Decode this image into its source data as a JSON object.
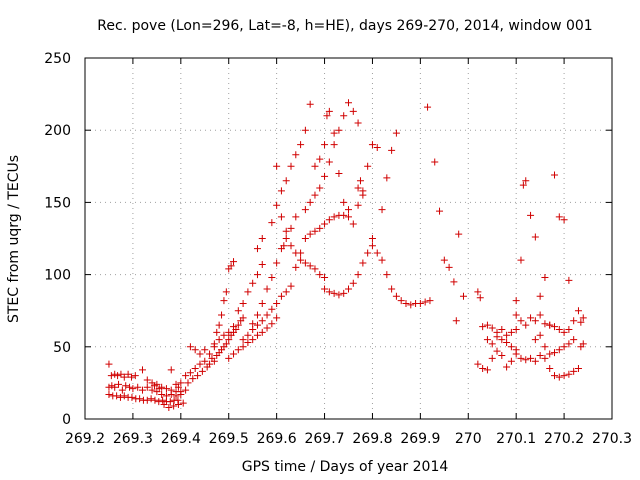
{
  "chart_data": {
    "type": "scatter",
    "title": "Rec. pove (Lon=296, Lat=-8, h=HE), days 269-270, 2014, window 001",
    "xlabel": "GPS time / Days of year 2014",
    "ylabel": "STEC from uqrg / TECUs",
    "xlim": [
      269.2,
      270.3
    ],
    "ylim": [
      0,
      250
    ],
    "x_ticks": [
      "269.2",
      "269.3",
      "269.4",
      "269.5",
      "269.6",
      "269.7",
      "269.8",
      "269.9",
      "270",
      "270.1",
      "270.2",
      "270.3"
    ],
    "y_ticks": [
      "0",
      "50",
      "100",
      "150",
      "200",
      "250"
    ],
    "grid": true,
    "marker": "+",
    "color": "#d00000",
    "points": [
      [
        269.25,
        38
      ],
      [
        269.255,
        30
      ],
      [
        269.262,
        31
      ],
      [
        269.268,
        30
      ],
      [
        269.275,
        31
      ],
      [
        269.282,
        29
      ],
      [
        269.29,
        31
      ],
      [
        269.297,
        29
      ],
      [
        269.305,
        30
      ],
      [
        269.32,
        34
      ],
      [
        269.25,
        22
      ],
      [
        269.256,
        23
      ],
      [
        269.262,
        22
      ],
      [
        269.27,
        24
      ],
      [
        269.278,
        20
      ],
      [
        269.285,
        23
      ],
      [
        269.293,
        22
      ],
      [
        269.3,
        21
      ],
      [
        269.31,
        22
      ],
      [
        269.32,
        20
      ],
      [
        269.33,
        22
      ],
      [
        269.34,
        20
      ],
      [
        269.35,
        19
      ],
      [
        269.25,
        17
      ],
      [
        269.258,
        16
      ],
      [
        269.266,
        16
      ],
      [
        269.274,
        15
      ],
      [
        269.282,
        16
      ],
      [
        269.29,
        15
      ],
      [
        269.298,
        15
      ],
      [
        269.306,
        14
      ],
      [
        269.314,
        14
      ],
      [
        269.322,
        13
      ],
      [
        269.33,
        13
      ],
      [
        269.338,
        14
      ],
      [
        269.346,
        13
      ],
      [
        269.354,
        12
      ],
      [
        269.362,
        13
      ],
      [
        269.37,
        12
      ],
      [
        269.378,
        12
      ],
      [
        269.386,
        13
      ],
      [
        269.394,
        13
      ],
      [
        269.33,
        27
      ],
      [
        269.34,
        25
      ],
      [
        269.35,
        24
      ],
      [
        269.36,
        22
      ],
      [
        269.37,
        21
      ],
      [
        269.38,
        20
      ],
      [
        269.39,
        19
      ],
      [
        269.4,
        19
      ],
      [
        269.345,
        23
      ],
      [
        269.355,
        21
      ],
      [
        269.36,
        17
      ],
      [
        269.37,
        16
      ],
      [
        269.38,
        17
      ],
      [
        269.39,
        16
      ],
      [
        269.4,
        17
      ],
      [
        269.365,
        10
      ],
      [
        269.375,
        8
      ],
      [
        269.385,
        9
      ],
      [
        269.395,
        10
      ],
      [
        269.405,
        11
      ],
      [
        269.38,
        34
      ],
      [
        269.39,
        24
      ],
      [
        269.395,
        22
      ],
      [
        269.4,
        25
      ],
      [
        269.41,
        20
      ],
      [
        269.41,
        30
      ],
      [
        269.415,
        25
      ],
      [
        269.42,
        32
      ],
      [
        269.425,
        28
      ],
      [
        269.43,
        35
      ],
      [
        269.435,
        30
      ],
      [
        269.44,
        38
      ],
      [
        269.445,
        33
      ],
      [
        269.45,
        40
      ],
      [
        269.455,
        36
      ],
      [
        269.42,
        50
      ],
      [
        269.43,
        48
      ],
      [
        269.44,
        45
      ],
      [
        269.45,
        48
      ],
      [
        269.46,
        45
      ],
      [
        269.47,
        52
      ],
      [
        269.475,
        60
      ],
      [
        269.48,
        65
      ],
      [
        269.485,
        72
      ],
      [
        269.49,
        82
      ],
      [
        269.495,
        88
      ],
      [
        269.5,
        104
      ],
      [
        269.505,
        106
      ],
      [
        269.51,
        109
      ],
      [
        269.46,
        38
      ],
      [
        269.465,
        42
      ],
      [
        269.47,
        40
      ],
      [
        269.475,
        44
      ],
      [
        269.48,
        46
      ],
      [
        269.485,
        48
      ],
      [
        269.49,
        50
      ],
      [
        269.495,
        52
      ],
      [
        269.5,
        55
      ],
      [
        269.505,
        58
      ],
      [
        269.51,
        60
      ],
      [
        269.515,
        62
      ],
      [
        269.52,
        65
      ],
      [
        269.525,
        68
      ],
      [
        269.53,
        70
      ],
      [
        269.47,
        50
      ],
      [
        269.48,
        55
      ],
      [
        269.49,
        58
      ],
      [
        269.5,
        60
      ],
      [
        269.51,
        64
      ],
      [
        269.52,
        75
      ],
      [
        269.53,
        80
      ],
      [
        269.54,
        88
      ],
      [
        269.55,
        94
      ],
      [
        269.56,
        100
      ],
      [
        269.57,
        107
      ],
      [
        269.5,
        42
      ],
      [
        269.51,
        45
      ],
      [
        269.52,
        48
      ],
      [
        269.53,
        50
      ],
      [
        269.54,
        53
      ],
      [
        269.55,
        55
      ],
      [
        269.56,
        58
      ],
      [
        269.57,
        60
      ],
      [
        269.58,
        63
      ],
      [
        269.59,
        66
      ],
      [
        269.6,
        70
      ],
      [
        269.53,
        55
      ],
      [
        269.54,
        58
      ],
      [
        269.55,
        62
      ],
      [
        269.56,
        65
      ],
      [
        269.57,
        68
      ],
      [
        269.58,
        72
      ],
      [
        269.59,
        76
      ],
      [
        269.6,
        80
      ],
      [
        269.61,
        85
      ],
      [
        269.62,
        88
      ],
      [
        269.63,
        92
      ],
      [
        269.55,
        66
      ],
      [
        269.56,
        72
      ],
      [
        269.57,
        80
      ],
      [
        269.58,
        90
      ],
      [
        269.59,
        98
      ],
      [
        269.6,
        108
      ],
      [
        269.61,
        118
      ],
      [
        269.615,
        120
      ],
      [
        269.62,
        125
      ],
      [
        269.63,
        132
      ],
      [
        269.64,
        140
      ],
      [
        269.56,
        118
      ],
      [
        269.57,
        125
      ],
      [
        269.59,
        136
      ],
      [
        269.6,
        148
      ],
      [
        269.61,
        158
      ],
      [
        269.62,
        165
      ],
      [
        269.63,
        175
      ],
      [
        269.64,
        183
      ],
      [
        269.65,
        190
      ],
      [
        269.66,
        200
      ],
      [
        269.67,
        218
      ],
      [
        269.6,
        175
      ],
      [
        269.61,
        140
      ],
      [
        269.62,
        130
      ],
      [
        269.63,
        120
      ],
      [
        269.64,
        115
      ],
      [
        269.65,
        110
      ],
      [
        269.66,
        108
      ],
      [
        269.67,
        106
      ],
      [
        269.68,
        104
      ],
      [
        269.69,
        100
      ],
      [
        269.7,
        98
      ],
      [
        269.7,
        90
      ],
      [
        269.71,
        88
      ],
      [
        269.72,
        87
      ],
      [
        269.73,
        86
      ],
      [
        269.74,
        87
      ],
      [
        269.75,
        90
      ],
      [
        269.76,
        94
      ],
      [
        269.77,
        100
      ],
      [
        269.78,
        108
      ],
      [
        269.79,
        115
      ],
      [
        269.8,
        125
      ],
      [
        269.64,
        105
      ],
      [
        269.65,
        115
      ],
      [
        269.66,
        125
      ],
      [
        269.67,
        128
      ],
      [
        269.68,
        130
      ],
      [
        269.69,
        132
      ],
      [
        269.7,
        135
      ],
      [
        269.71,
        138
      ],
      [
        269.72,
        140
      ],
      [
        269.73,
        141
      ],
      [
        269.74,
        141
      ],
      [
        269.75,
        145
      ],
      [
        269.66,
        145
      ],
      [
        269.67,
        150
      ],
      [
        269.68,
        155
      ],
      [
        269.69,
        160
      ],
      [
        269.7,
        168
      ],
      [
        269.71,
        178
      ],
      [
        269.72,
        190
      ],
      [
        269.73,
        200
      ],
      [
        269.74,
        210
      ],
      [
        269.75,
        219
      ],
      [
        269.76,
        213
      ],
      [
        269.77,
        205
      ],
      [
        269.68,
        175
      ],
      [
        269.69,
        180
      ],
      [
        269.7,
        190
      ],
      [
        269.705,
        210
      ],
      [
        269.71,
        213
      ],
      [
        269.72,
        198
      ],
      [
        269.73,
        170
      ],
      [
        269.74,
        150
      ],
      [
        269.75,
        140
      ],
      [
        269.76,
        135
      ],
      [
        269.77,
        148
      ],
      [
        269.78,
        155
      ],
      [
        269.77,
        160
      ],
      [
        269.775,
        165
      ],
      [
        269.78,
        158
      ],
      [
        269.79,
        175
      ],
      [
        269.8,
        190
      ],
      [
        269.81,
        188
      ],
      [
        269.82,
        145
      ],
      [
        269.83,
        167
      ],
      [
        269.84,
        186
      ],
      [
        269.85,
        198
      ],
      [
        269.8,
        120
      ],
      [
        269.81,
        115
      ],
      [
        269.82,
        110
      ],
      [
        269.83,
        100
      ],
      [
        269.84,
        90
      ],
      [
        269.85,
        85
      ],
      [
        269.86,
        82
      ],
      [
        269.87,
        80
      ],
      [
        269.88,
        79
      ],
      [
        269.89,
        80
      ],
      [
        269.9,
        80
      ],
      [
        269.91,
        81
      ],
      [
        269.92,
        82
      ],
      [
        269.915,
        216
      ],
      [
        269.93,
        178
      ],
      [
        269.94,
        144
      ],
      [
        269.95,
        110
      ],
      [
        269.96,
        105
      ],
      [
        269.97,
        95
      ],
      [
        269.98,
        128
      ],
      [
        269.99,
        85
      ],
      [
        269.975,
        68
      ],
      [
        270.02,
        88
      ],
      [
        270.025,
        84
      ],
      [
        270.03,
        64
      ],
      [
        270.04,
        65
      ],
      [
        270.05,
        63
      ],
      [
        270.06,
        60
      ],
      [
        270.07,
        62
      ],
      [
        270.08,
        58
      ],
      [
        270.09,
        60
      ],
      [
        270.1,
        62
      ],
      [
        270.02,
        38
      ],
      [
        270.03,
        35
      ],
      [
        270.04,
        34
      ],
      [
        270.05,
        42
      ],
      [
        270.06,
        47
      ],
      [
        270.07,
        44
      ],
      [
        270.08,
        36
      ],
      [
        270.09,
        40
      ],
      [
        270.04,
        55
      ],
      [
        270.05,
        52
      ],
      [
        270.06,
        57
      ],
      [
        270.07,
        55
      ],
      [
        270.08,
        53
      ],
      [
        270.09,
        50
      ],
      [
        270.1,
        48
      ],
      [
        270.1,
        82
      ],
      [
        270.11,
        110
      ],
      [
        270.115,
        162
      ],
      [
        270.12,
        165
      ],
      [
        270.13,
        141
      ],
      [
        270.14,
        126
      ],
      [
        270.15,
        85
      ],
      [
        270.16,
        98
      ],
      [
        270.17,
        65
      ],
      [
        270.18,
        169
      ],
      [
        270.19,
        140
      ],
      [
        270.2,
        138
      ],
      [
        270.21,
        96
      ],
      [
        270.1,
        72
      ],
      [
        270.11,
        68
      ],
      [
        270.12,
        65
      ],
      [
        270.13,
        70
      ],
      [
        270.14,
        68
      ],
      [
        270.15,
        72
      ],
      [
        270.16,
        66
      ],
      [
        270.17,
        65
      ],
      [
        270.18,
        64
      ],
      [
        270.19,
        62
      ],
      [
        270.2,
        60
      ],
      [
        270.21,
        62
      ],
      [
        270.22,
        68
      ],
      [
        270.23,
        75
      ],
      [
        270.1,
        45
      ],
      [
        270.11,
        42
      ],
      [
        270.12,
        41
      ],
      [
        270.13,
        42
      ],
      [
        270.14,
        40
      ],
      [
        270.15,
        44
      ],
      [
        270.16,
        42
      ],
      [
        270.17,
        45
      ],
      [
        270.18,
        46
      ],
      [
        270.19,
        48
      ],
      [
        270.2,
        50
      ],
      [
        270.21,
        52
      ],
      [
        270.22,
        55
      ],
      [
        270.14,
        55
      ],
      [
        270.15,
        58
      ],
      [
        270.16,
        50
      ],
      [
        270.17,
        35
      ],
      [
        270.18,
        30
      ],
      [
        270.19,
        29
      ],
      [
        270.2,
        30
      ],
      [
        270.21,
        31
      ],
      [
        270.22,
        33
      ],
      [
        270.23,
        35
      ],
      [
        270.235,
        50
      ],
      [
        270.24,
        52
      ],
      [
        270.235,
        67
      ],
      [
        270.24,
        70
      ]
    ]
  }
}
